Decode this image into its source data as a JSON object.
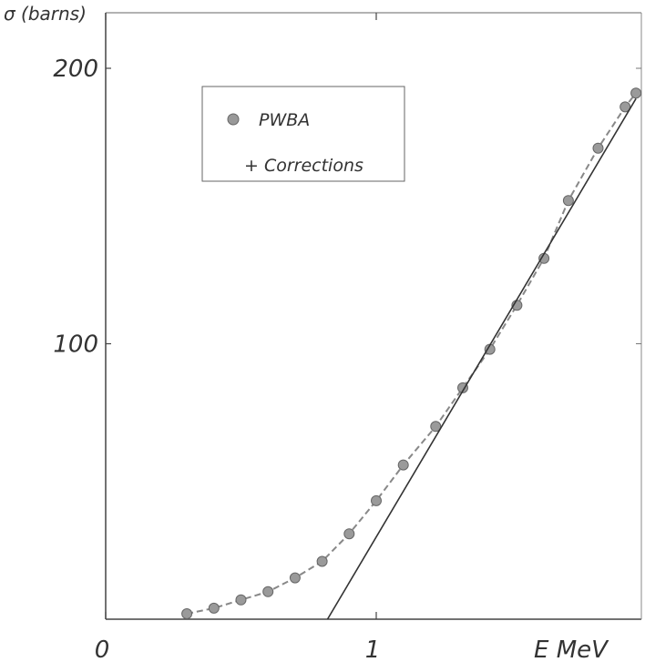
{
  "chart_data": {
    "type": "line",
    "title": "",
    "ylabel": "σ (barns)",
    "xlabel": "E  MeV",
    "xlim": [
      0,
      2
    ],
    "ylim": [
      0,
      200
    ],
    "x_ticks": [
      {
        "value": 0,
        "label": "0"
      },
      {
        "value": 1,
        "label": "1"
      }
    ],
    "y_ticks": [
      {
        "value": 100,
        "label": "100"
      },
      {
        "value": 200,
        "label": "200"
      }
    ],
    "grid": false,
    "legend": {
      "placement": "top-left",
      "entries": [
        {
          "marker": "dot",
          "label": "PWBA"
        },
        {
          "marker": "plus",
          "label": "+ Corrections"
        }
      ]
    },
    "series": [
      {
        "style": "dots-dashed",
        "color": "#888888",
        "x": [
          0.3,
          0.4,
          0.5,
          0.6,
          0.7,
          0.8,
          0.9,
          1.0,
          1.1,
          1.22,
          1.32,
          1.42,
          1.52,
          1.62,
          1.71,
          1.82,
          1.92,
          1.96
        ],
        "y": [
          2,
          4,
          7,
          10,
          15,
          21,
          31,
          43,
          56,
          70,
          84,
          98,
          114,
          131,
          152,
          171,
          186,
          191
        ]
      },
      {
        "style": "solid",
        "color": "#333333",
        "x": [
          0.82,
          1.96
        ],
        "y": [
          0,
          189
        ]
      }
    ]
  }
}
